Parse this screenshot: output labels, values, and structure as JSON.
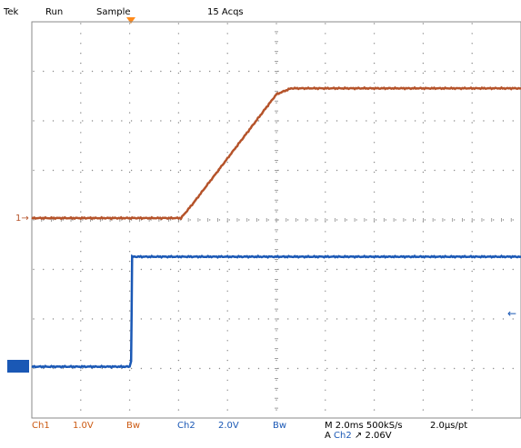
{
  "status_bar": {
    "brand": "Tek",
    "run_state": "Run",
    "acq_mode": "Sample",
    "acq_count": "15 Acqs"
  },
  "footer": {
    "ch1_label": "Ch1",
    "ch1_scale": "1.0V",
    "ch1_bw": "Bw",
    "ch2_label": "Ch2",
    "ch2_scale": "2.0V",
    "ch2_bw": "Bw",
    "timebase": "M 2.0ms 500kS/s",
    "time_per_pt": "2.0µs/pt",
    "trigger_prefix": "A",
    "trigger_source": "Ch2",
    "trigger_slope": "↗",
    "trigger_level": "2.06V"
  },
  "markers": {
    "ch1_ground": "1→",
    "ch2_trigger_arrow": "←"
  },
  "colors": {
    "grid": "#8a8a8a",
    "ch1": "#b5532a",
    "ch2": "#1a58b5",
    "trigger_marker": "#ff8a1a"
  },
  "chart_data": {
    "type": "line",
    "x_divisions": 10,
    "y_divisions": 8,
    "series": [
      {
        "name": "Ch1",
        "x": [
          0,
          3.05,
          3.3,
          5.0,
          5.3,
          10
        ],
        "y": [
          0,
          0,
          0.3,
          2.5,
          2.62,
          2.62
        ]
      },
      {
        "name": "Ch2",
        "x": [
          0,
          2.0,
          2.03,
          2.05,
          10
        ],
        "y": [
          -3.0,
          -3.0,
          -2.9,
          -0.78,
          -0.78
        ]
      }
    ]
  }
}
